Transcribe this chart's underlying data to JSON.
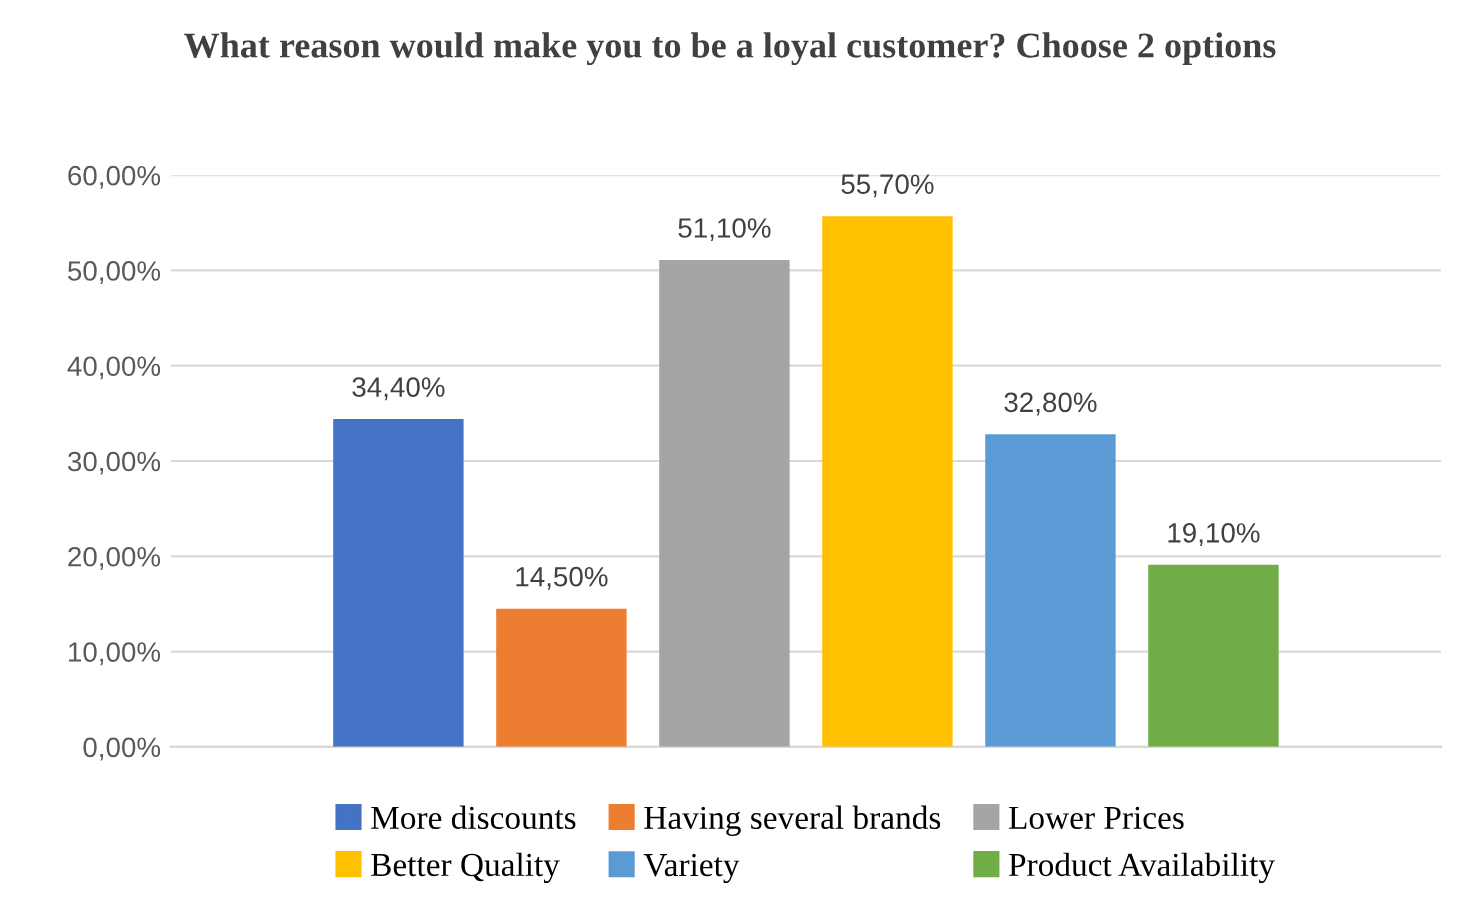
{
  "chart_data": {
    "type": "bar",
    "title": "What reason would make you to be a loyal customer? Choose 2 options",
    "categories": [
      null
    ],
    "series": [
      {
        "name": "More discounts",
        "color": "#4472c4",
        "values": [
          34.4
        ],
        "value_labels": [
          "34,40%"
        ]
      },
      {
        "name": "Having several brands",
        "color": "#ed7d31",
        "values": [
          14.5
        ],
        "value_labels": [
          "14,50%"
        ]
      },
      {
        "name": "Lower Prices",
        "color": "#a5a5a5",
        "values": [
          51.1
        ],
        "value_labels": [
          "51,10%"
        ]
      },
      {
        "name": "Better Quality",
        "color": "#ffc000",
        "values": [
          55.7
        ],
        "value_labels": [
          "55,70%"
        ]
      },
      {
        "name": "Variety",
        "color": "#5b9bd5",
        "values": [
          32.8
        ],
        "value_labels": [
          "32,80%"
        ]
      },
      {
        "name": "Product Availability",
        "color": "#70ad47",
        "values": [
          19.1
        ],
        "value_labels": [
          "19,10%"
        ]
      }
    ],
    "ylim": [
      0,
      60
    ],
    "yticks": [
      {
        "value": 0,
        "label": "0,00%"
      },
      {
        "value": 10,
        "label": "10,00%"
      },
      {
        "value": 20,
        "label": "20,00%"
      },
      {
        "value": 30,
        "label": "30,00%"
      },
      {
        "value": 40,
        "label": "40,00%"
      },
      {
        "value": 50,
        "label": "50,00%"
      },
      {
        "value": 60,
        "label": "60,00%"
      }
    ],
    "grid": "y",
    "legend": "bottom"
  }
}
